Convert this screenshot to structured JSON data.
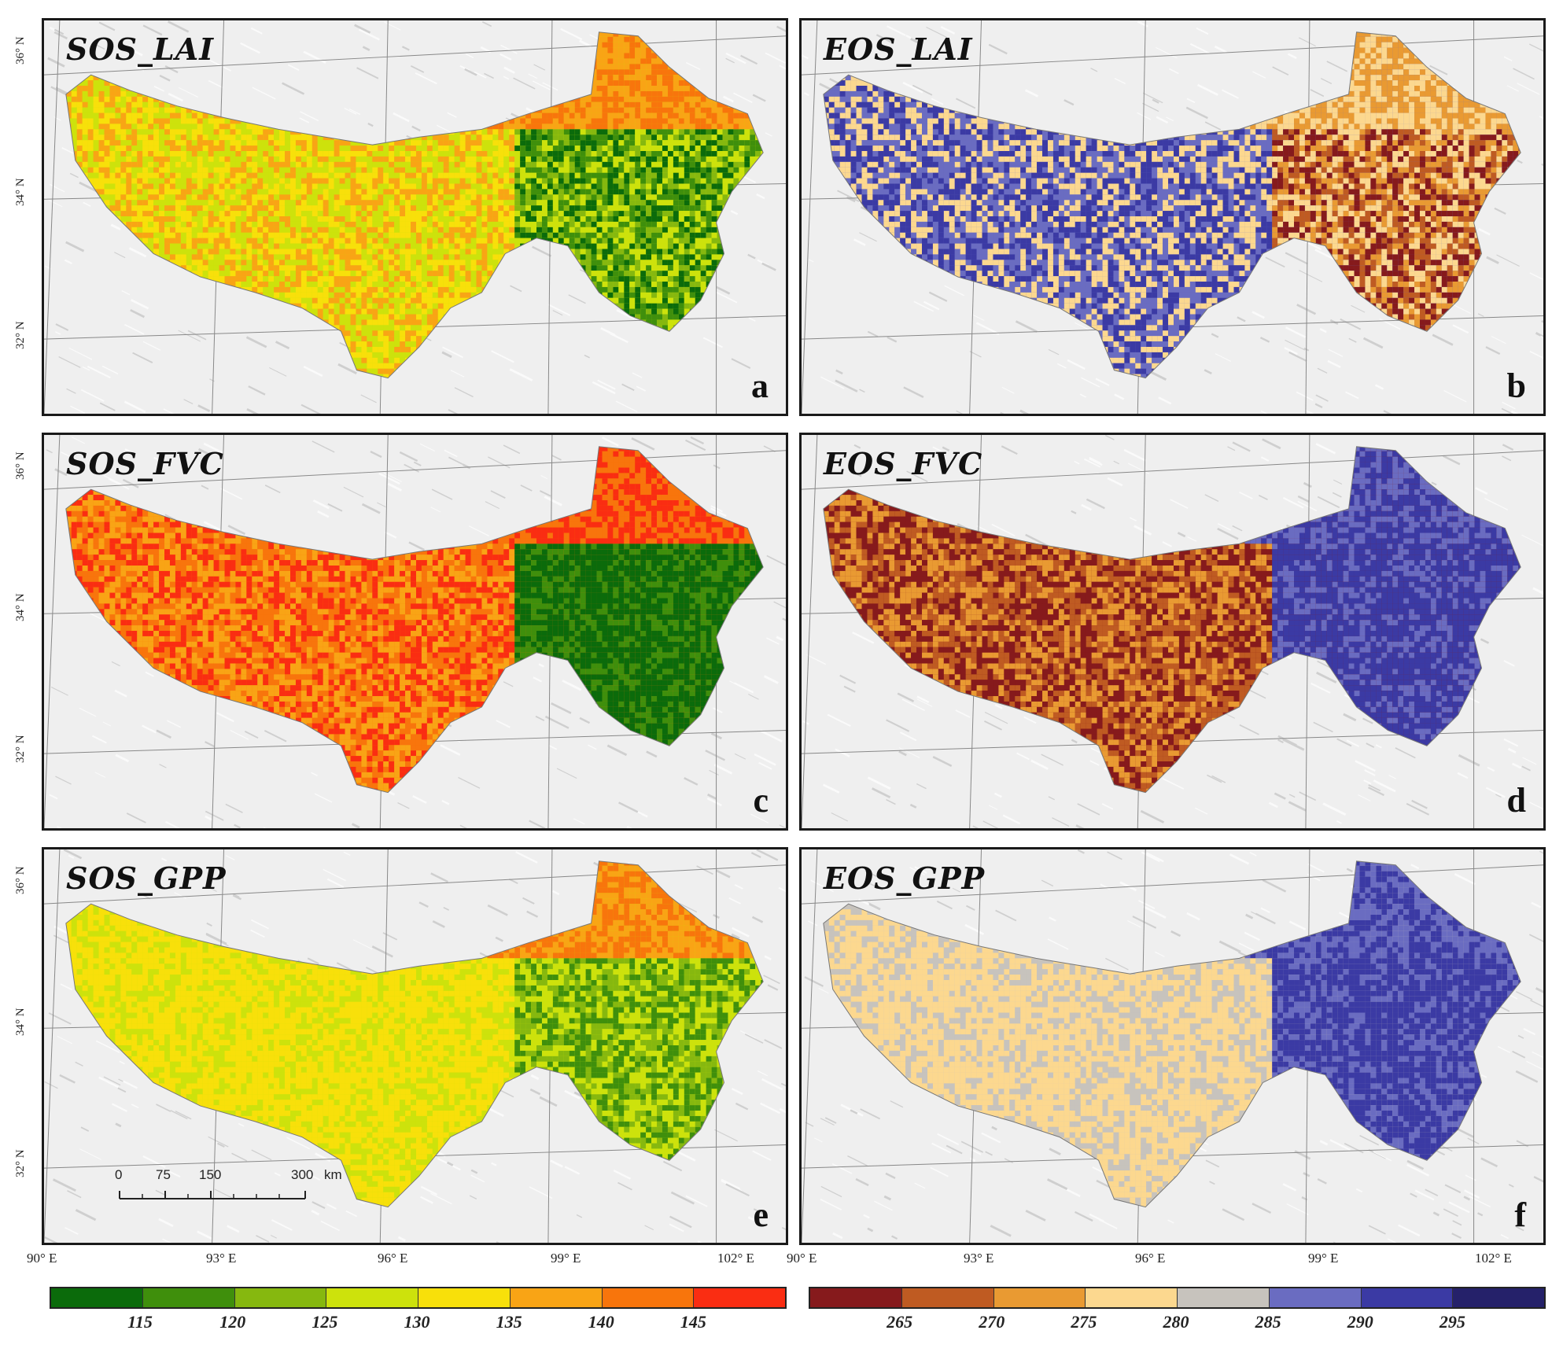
{
  "panels": [
    {
      "title": "SOS_LAI",
      "letter": "a",
      "palette": "sos",
      "variant": 0
    },
    {
      "title": "EOS_LAI",
      "letter": "b",
      "palette": "eos",
      "variant": 1
    },
    {
      "title": "SOS_FVC",
      "letter": "c",
      "palette": "sos",
      "variant": 2
    },
    {
      "title": "EOS_FVC",
      "letter": "d",
      "palette": "eos",
      "variant": 3
    },
    {
      "title": "SOS_GPP",
      "letter": "e",
      "palette": "sos",
      "variant": 4
    },
    {
      "title": "EOS_GPP",
      "letter": "f",
      "palette": "eos",
      "variant": 5
    }
  ],
  "lat_labels": [
    "36° N",
    "34° N",
    "32° N"
  ],
  "lon_labels_left": [
    "90° E",
    "93° E",
    "96° E",
    "99° E",
    "102° E"
  ],
  "lon_labels_right": [
    "90° E",
    "93° E",
    "96° E",
    "99° E",
    "102° E"
  ],
  "scale_bar": {
    "ticks": [
      "0",
      "75",
      "150",
      "300"
    ],
    "unit": "km"
  },
  "legend_sos": {
    "colors": [
      "#0b6b0b",
      "#3f8f0c",
      "#86b80f",
      "#cde20c",
      "#f8e00a",
      "#f9a415",
      "#f8750c",
      "#fa2d12"
    ],
    "ticks": [
      "115",
      "120",
      "125",
      "130",
      "135",
      "140",
      "145"
    ]
  },
  "legend_eos": {
    "colors": [
      "#861a1c",
      "#bf5b22",
      "#e99a32",
      "#fcd88f",
      "#c7c3bd",
      "#6a6cc1",
      "#3b3aa4",
      "#25216a"
    ],
    "ticks": [
      "265",
      "270",
      "275",
      "280",
      "285",
      "290",
      "295"
    ]
  }
}
